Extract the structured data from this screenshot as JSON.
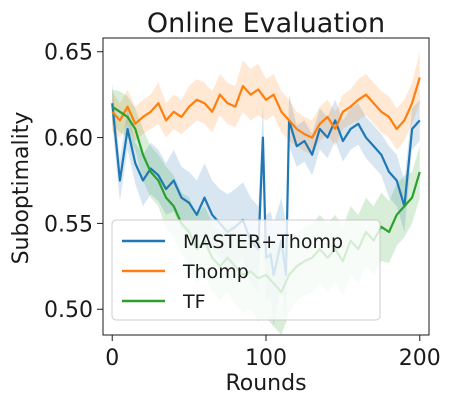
{
  "chart_data": {
    "type": "line",
    "title": "Online Evaluation",
    "xlabel": "Rounds",
    "ylabel": "Suboptimality",
    "xlim": [
      -6,
      206
    ],
    "ylim": [
      0.485,
      0.658
    ],
    "xticks": [
      0,
      100,
      200
    ],
    "xtick_labels": [
      "0",
      "100",
      "200"
    ],
    "yticks": [
      0.5,
      0.55,
      0.6,
      0.65
    ],
    "ytick_labels": [
      "0.50",
      "0.55",
      "0.60",
      "0.65"
    ],
    "grid": false,
    "legend_position": "lower-left",
    "shaded_band": true,
    "series": [
      {
        "name": "MASTER+Thomp",
        "color": "#1f77b4",
        "x": [
          0,
          5,
          10,
          15,
          20,
          25,
          30,
          35,
          40,
          45,
          50,
          55,
          60,
          65,
          70,
          75,
          80,
          85,
          90,
          95,
          98,
          100,
          103,
          105,
          110,
          113,
          115,
          120,
          125,
          130,
          135,
          140,
          145,
          150,
          155,
          160,
          165,
          170,
          175,
          180,
          185,
          190,
          195,
          200
        ],
        "y": [
          0.62,
          0.575,
          0.605,
          0.585,
          0.575,
          0.582,
          0.578,
          0.57,
          0.575,
          0.565,
          0.562,
          0.555,
          0.565,
          0.555,
          0.55,
          0.545,
          0.548,
          0.552,
          0.54,
          0.535,
          0.6,
          0.53,
          0.532,
          0.52,
          0.54,
          0.52,
          0.61,
          0.595,
          0.598,
          0.59,
          0.605,
          0.6,
          0.61,
          0.598,
          0.605,
          0.608,
          0.6,
          0.595,
          0.59,
          0.58,
          0.575,
          0.56,
          0.605,
          0.61
        ],
        "band": [
          0.012,
          0.012,
          0.012,
          0.012,
          0.015,
          0.015,
          0.015,
          0.015,
          0.018,
          0.018,
          0.018,
          0.02,
          0.02,
          0.02,
          0.02,
          0.022,
          0.022,
          0.022,
          0.025,
          0.025,
          0.02,
          0.025,
          0.025,
          0.03,
          0.025,
          0.03,
          0.015,
          0.012,
          0.012,
          0.012,
          0.012,
          0.012,
          0.012,
          0.012,
          0.012,
          0.012,
          0.012,
          0.012,
          0.012,
          0.015,
          0.015,
          0.015,
          0.012,
          0.012
        ]
      },
      {
        "name": "Thomp",
        "color": "#ff7f0e",
        "x": [
          0,
          5,
          10,
          15,
          20,
          25,
          30,
          35,
          40,
          45,
          50,
          55,
          60,
          65,
          70,
          75,
          80,
          85,
          90,
          95,
          100,
          105,
          110,
          115,
          120,
          125,
          130,
          135,
          140,
          145,
          150,
          155,
          160,
          165,
          170,
          175,
          180,
          185,
          190,
          195,
          200
        ],
        "y": [
          0.615,
          0.61,
          0.618,
          0.608,
          0.612,
          0.615,
          0.62,
          0.61,
          0.615,
          0.612,
          0.618,
          0.622,
          0.62,
          0.615,
          0.625,
          0.62,
          0.618,
          0.63,
          0.625,
          0.628,
          0.622,
          0.625,
          0.615,
          0.61,
          0.605,
          0.602,
          0.6,
          0.608,
          0.612,
          0.605,
          0.615,
          0.618,
          0.622,
          0.625,
          0.62,
          0.615,
          0.612,
          0.605,
          0.61,
          0.62,
          0.635
        ],
        "band": [
          0.012,
          0.01,
          0.01,
          0.01,
          0.01,
          0.01,
          0.012,
          0.01,
          0.01,
          0.01,
          0.012,
          0.012,
          0.012,
          0.012,
          0.012,
          0.012,
          0.012,
          0.015,
          0.015,
          0.015,
          0.012,
          0.012,
          0.012,
          0.012,
          0.01,
          0.01,
          0.01,
          0.01,
          0.01,
          0.01,
          0.01,
          0.01,
          0.012,
          0.012,
          0.012,
          0.012,
          0.012,
          0.012,
          0.012,
          0.012,
          0.015
        ]
      },
      {
        "name": "TF",
        "color": "#2ca02c",
        "x": [
          0,
          5,
          10,
          15,
          20,
          25,
          30,
          35,
          40,
          45,
          50,
          55,
          60,
          65,
          70,
          75,
          80,
          85,
          90,
          95,
          100,
          105,
          110,
          115,
          120,
          125,
          130,
          135,
          140,
          145,
          150,
          155,
          160,
          165,
          170,
          175,
          180,
          185,
          190,
          195,
          200
        ],
        "y": [
          0.618,
          0.615,
          0.612,
          0.605,
          0.59,
          0.58,
          0.575,
          0.565,
          0.56,
          0.55,
          0.545,
          0.535,
          0.54,
          0.53,
          0.525,
          0.53,
          0.525,
          0.52,
          0.522,
          0.518,
          0.52,
          0.515,
          0.51,
          0.52,
          0.525,
          0.528,
          0.53,
          0.535,
          0.53,
          0.535,
          0.528,
          0.54,
          0.535,
          0.545,
          0.54,
          0.548,
          0.545,
          0.555,
          0.56,
          0.565,
          0.58
        ],
        "band": [
          0.01,
          0.012,
          0.012,
          0.012,
          0.015,
          0.015,
          0.015,
          0.018,
          0.018,
          0.018,
          0.02,
          0.02,
          0.02,
          0.02,
          0.02,
          0.02,
          0.022,
          0.022,
          0.022,
          0.025,
          0.025,
          0.025,
          0.025,
          0.022,
          0.02,
          0.02,
          0.02,
          0.02,
          0.02,
          0.02,
          0.02,
          0.02,
          0.02,
          0.02,
          0.02,
          0.02,
          0.018,
          0.018,
          0.018,
          0.015,
          0.015
        ]
      }
    ]
  }
}
